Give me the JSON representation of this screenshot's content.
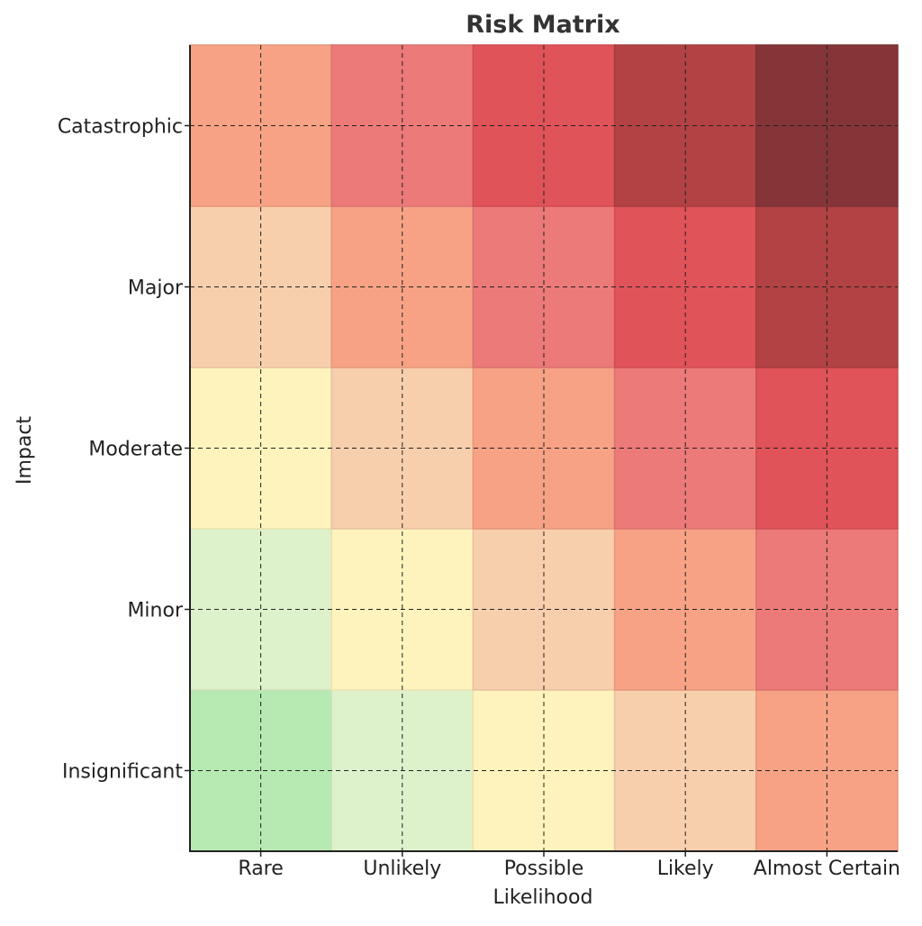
{
  "chart_data": {
    "type": "heatmap",
    "title": "Risk Matrix",
    "xlabel": "Likelihood",
    "ylabel": "Impact",
    "x_categories": [
      "Rare",
      "Unlikely",
      "Possible",
      "Likely",
      "Almost Certain"
    ],
    "y_categories": [
      "Insignificant",
      "Minor",
      "Moderate",
      "Major",
      "Catastrophic"
    ],
    "y_order": "bottom-to-top",
    "values": [
      [
        1,
        2,
        3,
        4,
        5
      ],
      [
        2,
        3,
        4,
        5,
        6
      ],
      [
        3,
        4,
        5,
        6,
        7
      ],
      [
        4,
        5,
        6,
        7,
        8
      ],
      [
        5,
        6,
        7,
        8,
        9
      ]
    ],
    "value_note": "values[row][col], row 0 = Insignificant, col 0 = Rare; value = row + col + 1",
    "color_scale": {
      "1": "#b6eab2",
      "2": "#ddf1cb",
      "3": "#fef3bc",
      "4": "#f8cfad",
      "5": "#f7a285",
      "6": "#ec7a79",
      "7": "#e05358",
      "8": "#b24244",
      "9": "#853538"
    },
    "grid": true,
    "grid_style": "dashed",
    "legend": "none"
  }
}
